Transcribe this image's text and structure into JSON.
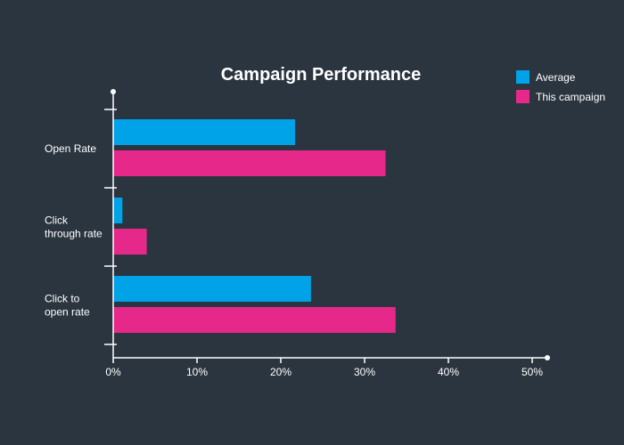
{
  "chart_data": {
    "type": "bar",
    "orientation": "horizontal",
    "title": "Campaign Performance",
    "categories": [
      [
        "Open Rate"
      ],
      [
        "Click",
        "through rate"
      ],
      [
        "Click to",
        "open rate"
      ]
    ],
    "series": [
      {
        "name": "Average",
        "color": "#00a2e8",
        "values": [
          21.7,
          1.1,
          23.6
        ]
      },
      {
        "name": "This campaign",
        "color": "#e6288a",
        "values": [
          32.5,
          4.0,
          33.7
        ]
      }
    ],
    "xlim": [
      0,
      52
    ],
    "xticks": [
      0,
      10,
      20,
      30,
      40,
      50
    ],
    "tick_suffix": "%",
    "legend": "top-right",
    "grid": false,
    "axis_color": "#ffffff",
    "background": "#2b3540"
  }
}
